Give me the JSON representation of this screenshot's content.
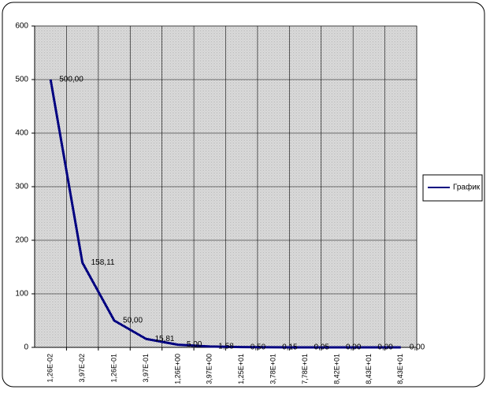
{
  "chart_data": {
    "type": "line",
    "categories": [
      "1,26E-02",
      "3,97E-02",
      "1,26E-01",
      "3,97E-01",
      "1,26E+00",
      "3,97E+00",
      "1,25E+01",
      "3,78E+01",
      "7,78E+01",
      "8,42E+01",
      "8,43E+01",
      "8,43E+01"
    ],
    "series": [
      {
        "name": "График",
        "color": "#000080",
        "values": [
          500,
          158.11,
          50,
          15.81,
          5,
          1.58,
          0.5,
          0.15,
          0.05,
          0,
          0,
          0
        ],
        "value_labels": [
          "500,00",
          "158,11",
          "50,00",
          "15,81",
          "5,00",
          "1,58",
          "0,50",
          "0,15",
          "0,05",
          "0,00",
          "0,00",
          "0,00"
        ]
      }
    ],
    "ylim": [
      0,
      600
    ],
    "yticks": [
      0,
      100,
      200,
      300,
      400,
      500,
      600
    ],
    "grid": true,
    "legend": "right"
  }
}
